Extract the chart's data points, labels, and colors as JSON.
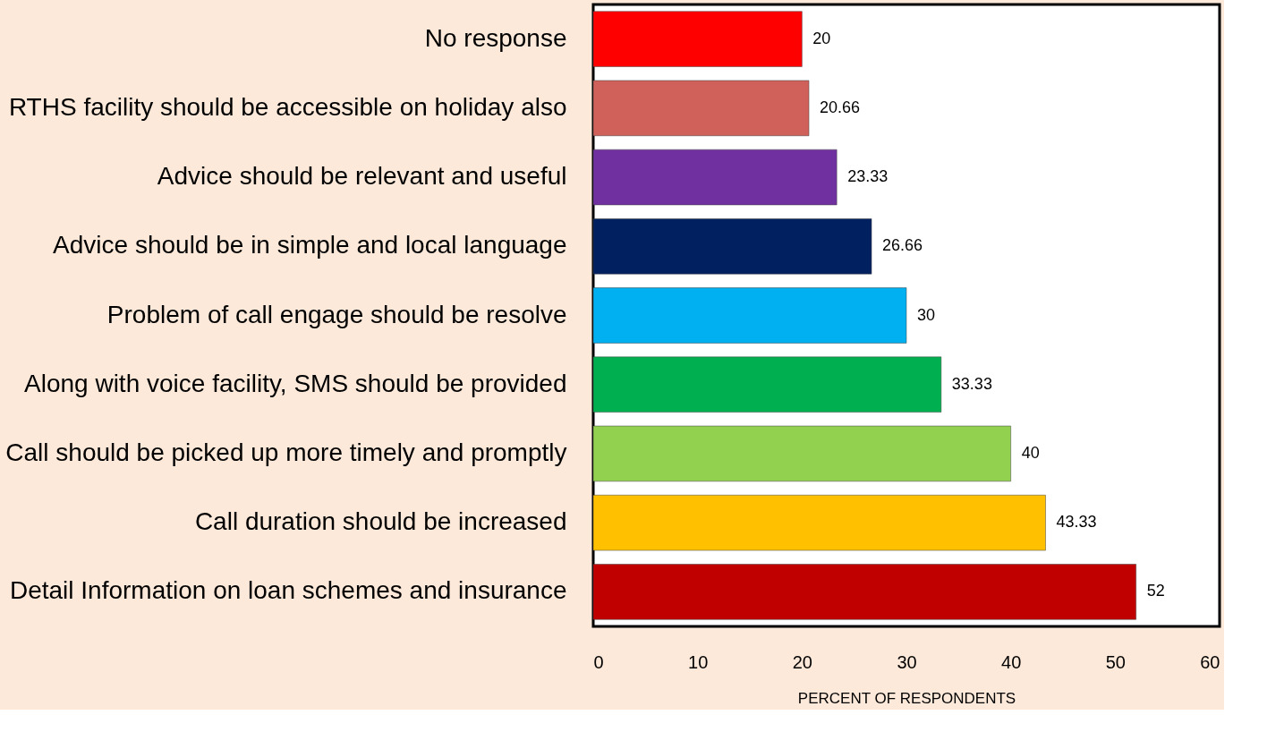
{
  "chart_data": {
    "type": "bar",
    "orientation": "horizontal",
    "xlabel": "PERCENT OF RESPONDENTS",
    "categories": [
      "No response",
      "RTHS facility should be accessible on holiday also",
      "Advice should be relevant and useful",
      "Advice should be in simple and local language",
      "Problem of call engage should be resolve",
      "Along with voice facility, SMS should be provided",
      "Call should be picked up more timely and promptly",
      "Call duration should be increased",
      "Detail Information on loan schemes and insurance"
    ],
    "values": [
      20,
      20.66,
      23.33,
      26.66,
      30,
      33.33,
      40,
      43.33,
      52
    ],
    "colors": [
      "#ff0000",
      "#d0605a",
      "#7030a0",
      "#002060",
      "#00b0f0",
      "#00b050",
      "#92d050",
      "#ffc000",
      "#c00000"
    ],
    "xlim": [
      0,
      60
    ],
    "xticks": [
      0,
      10,
      20,
      30,
      40,
      50,
      60
    ],
    "grid": false,
    "data_labels": true
  }
}
